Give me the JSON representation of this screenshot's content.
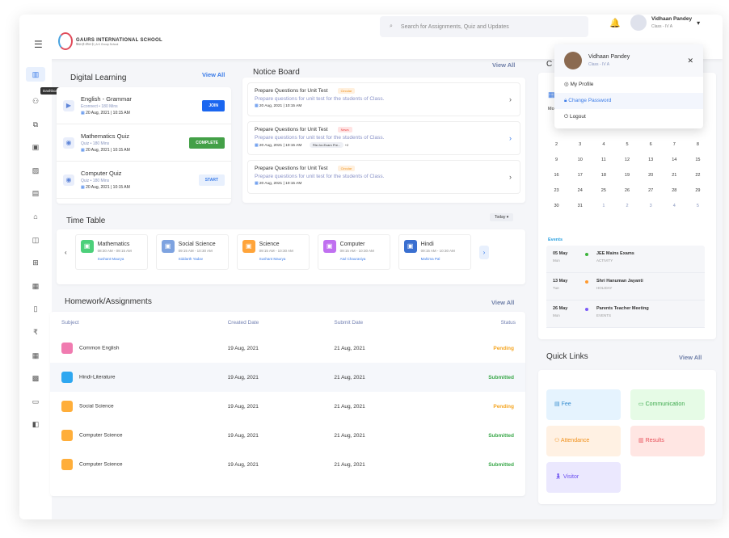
{
  "header": {
    "school_name": "GAURS INTERNATIONAL SCHOOL",
    "school_tagline": "शिक्षा ही जीवन है | A K Group School",
    "search_placeholder": "Search for Assignments, Quiz and Updates",
    "user_name": "Vidhaan Pandey",
    "user_class": "Class - IV A"
  },
  "sidebar": {
    "tooltip": "Dashboard",
    "icons": [
      "dashboard-icon",
      "attendance-icon",
      "documents-icon",
      "board-icon",
      "gallery-icon",
      "chat-icon",
      "laptop-icon",
      "library-icon",
      "add-icon",
      "calendar-icon",
      "clipboard-icon",
      "fee-icon",
      "event-icon",
      "timetable-icon",
      "report-icon",
      "book-icon"
    ]
  },
  "digital_learning": {
    "title": "Digital Learning",
    "view_all": "View All",
    "items": [
      {
        "title": "English - Grammar",
        "meta": "Econnect • 180 Mins",
        "date": "20 Aug, 2021 | 10:15 AM",
        "action": "JOIN",
        "color": "#1a66f0"
      },
      {
        "title": "Mathematics Quiz",
        "meta": "Quiz • 180 Mins",
        "date": "20 Aug, 2021 | 10:15 AM",
        "action": "COMPLETE",
        "color": "#43a047"
      },
      {
        "title": "Computer Quiz",
        "meta": "Quiz • 180 Mins",
        "date": "20 Aug, 2021 | 10:15 AM",
        "action": "START",
        "color": "#e8f0fd"
      }
    ]
  },
  "notice_board": {
    "title": "Notice Board",
    "view_all": "View All",
    "items": [
      {
        "title": "Prepare Questions for Unit Test",
        "tag": "Circular",
        "desc": "Prepare questions for unit test for the students of Class.",
        "date": "20 Aug, 2021 | 10:15 AM"
      },
      {
        "title": "Prepare Questions for Unit Test",
        "tag": "News",
        "desc": "Prepare questions for unit test for the students of Class.",
        "date": "20 Aug, 2021 | 10:15 AM",
        "attachment": "File-for-Exam Pre...",
        "more": "+2"
      },
      {
        "title": "Prepare Questions for Unit Test",
        "tag": "Circular",
        "desc": "Prepare questions for unit test for the students of Class.",
        "date": "20 Aug, 2021 | 10:15 AM"
      }
    ]
  },
  "timetable": {
    "title": "Time Table",
    "filter": "Today",
    "subjects": [
      {
        "name": "Mathematics",
        "time": "08:30 AM - 09:15 AM",
        "teacher": "Sushant Maurya",
        "color": "#4cd07a"
      },
      {
        "name": "Social Science",
        "time": "09:15 AM - 10:30 AM",
        "teacher": "Siddarth Yadav",
        "color": "#7ea3e0"
      },
      {
        "name": "Science",
        "time": "09:15 AM - 10:30 AM",
        "teacher": "Sushant Maurya",
        "color": "#ffa43a"
      },
      {
        "name": "Computer",
        "time": "09:15 AM - 10:30 AM",
        "teacher": "Atul Chaurasiya",
        "color": "#c070f0"
      },
      {
        "name": "Hindi",
        "time": "09:15 AM - 10:30 AM",
        "teacher": "Mahima Pal",
        "color": "#3a6fd0"
      }
    ]
  },
  "homework": {
    "title": "Homework/Assignments",
    "view_all": "View All",
    "columns": [
      "Subject",
      "Created Date",
      "Submit Date",
      "Status"
    ],
    "rows": [
      {
        "subject": "Common English",
        "created": "19 Aug, 2021",
        "submit": "21 Aug, 2021",
        "status": "Pending",
        "color": "#f07bb0"
      },
      {
        "subject": "Hindi-Literature",
        "created": "19 Aug, 2021",
        "submit": "21 Aug, 2021",
        "status": "Submitted",
        "color": "#2ea7f0"
      },
      {
        "subject": "Social Science",
        "created": "19 Aug, 2021",
        "submit": "21 Aug, 2021",
        "status": "Pending",
        "color": "#ffae3a"
      },
      {
        "subject": "Computer Science",
        "created": "19 Aug, 2021",
        "submit": "21 Aug, 2021",
        "status": "Submitted",
        "color": "#ffae3a"
      },
      {
        "subject": "Computer Science",
        "created": "19 Aug, 2021",
        "submit": "21 Aug, 2021",
        "status": "Submitted",
        "color": "#ffae3a"
      }
    ]
  },
  "calendar": {
    "title": "C",
    "weekday": "Mo",
    "days": [
      "2",
      "3",
      "4",
      "5",
      "6",
      "7",
      "8",
      "9",
      "10",
      "11",
      "12",
      "13",
      "14",
      "15",
      "16",
      "17",
      "18",
      "19",
      "20",
      "21",
      "22",
      "23",
      "24",
      "25",
      "26",
      "27",
      "28",
      "29",
      "30",
      "31",
      "1",
      "2",
      "3",
      "4",
      "5"
    ],
    "events_label": "Events",
    "events": [
      {
        "date": "05 May",
        "day": "Mon",
        "name": "JEE Mains Exams",
        "type": "ACTIVITY",
        "color": "#3cb43c"
      },
      {
        "date": "13 May",
        "day": "Tue",
        "name": "Shri Hanuman Jayanti",
        "type": "HOLIDAY",
        "color": "#ff9a2e"
      },
      {
        "date": "26 May",
        "day": "Mon",
        "name": "Parents Teacher Meeting",
        "type": "EVENTS",
        "color": "#7a5af8"
      }
    ]
  },
  "quick_links": {
    "title": "Quick Links",
    "view_all": "View All",
    "items": [
      {
        "label": "Fee",
        "bg": "#e5f3fe",
        "fg": "#3a8fd0"
      },
      {
        "label": "Communication",
        "bg": "#e6fbe6",
        "fg": "#3aa84a"
      },
      {
        "label": "Attendance",
        "bg": "#fff1e3",
        "fg": "#f0901a"
      },
      {
        "label": "Results",
        "bg": "#ffe6e3",
        "fg": "#e8505a"
      },
      {
        "label": "Visitor",
        "bg": "#ebe8fe",
        "fg": "#6a4ef0"
      }
    ]
  },
  "profile_menu": {
    "name": "Vidhaan Pandey",
    "class": "Class - IV A",
    "items": [
      "My Profile",
      "Change Password",
      "Logout"
    ]
  }
}
